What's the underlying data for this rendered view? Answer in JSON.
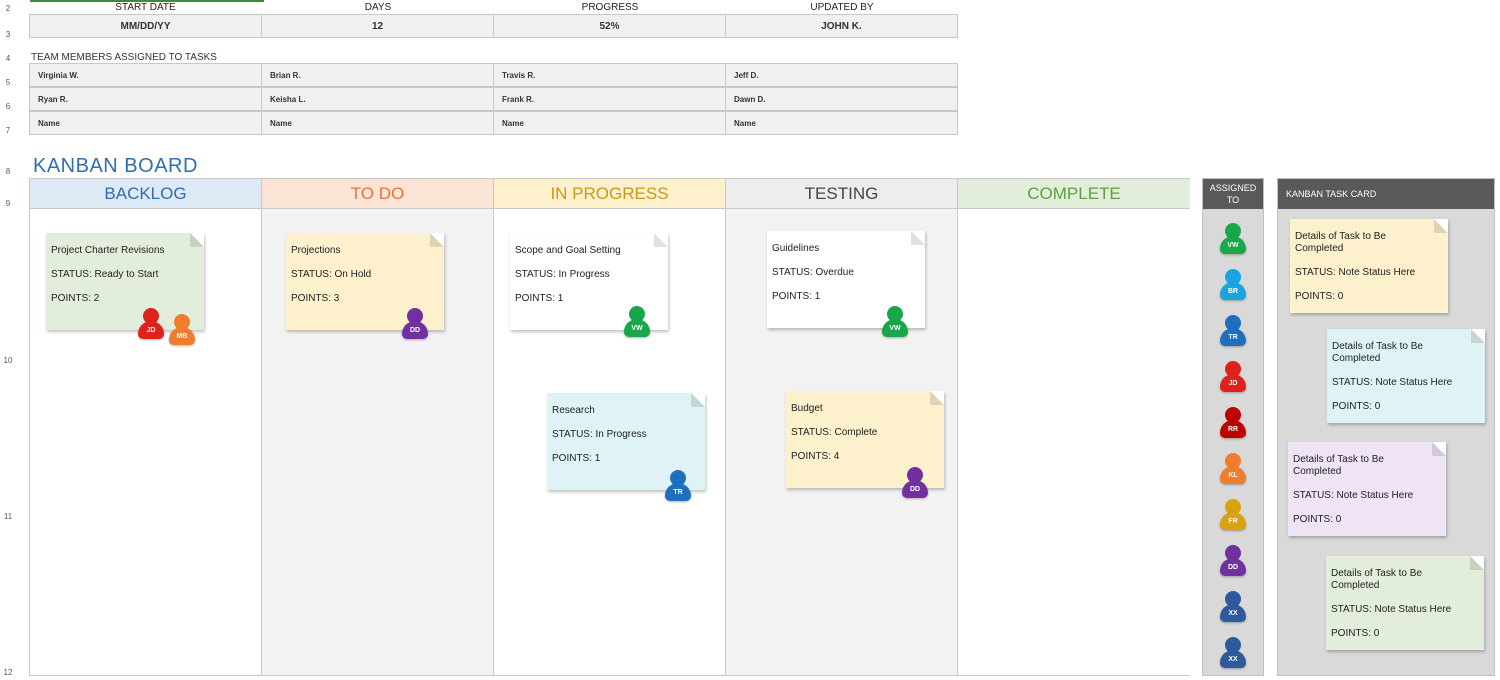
{
  "row_numbers": [
    "2",
    "3",
    "4",
    "5",
    "6",
    "7",
    "8",
    "9",
    "10",
    "11",
    "12"
  ],
  "summary": {
    "headers": [
      "START DATE",
      "DAYS",
      "PROGRESS",
      "UPDATED BY"
    ],
    "values": [
      "MM/DD/YY",
      "12",
      "52%",
      "JOHN K."
    ]
  },
  "team": {
    "label": "TEAM MEMBERS ASSIGNED TO TASKS",
    "rows": [
      [
        "Virginia W.",
        "Brian R.",
        "Travis R.",
        "Jeff D."
      ],
      [
        "Ryan R.",
        "Keisha L.",
        "Frank R.",
        "Dawn D."
      ],
      [
        "Name",
        "Name",
        "Name",
        "Name"
      ]
    ]
  },
  "board": {
    "title": "KANBAN BOARD",
    "columns": [
      {
        "label": "BACKLOG",
        "color": "#2f6eb0",
        "bg": "#dde9f5"
      },
      {
        "label": "TO DO",
        "color": "#e5743a",
        "bg": "#fbe3d6"
      },
      {
        "label": "IN PROGRESS",
        "color": "#c99a16",
        "bg": "#fdf0cc"
      },
      {
        "label": "TESTING",
        "color": "#444444",
        "bg": "#ededed"
      },
      {
        "label": "COMPLETE",
        "color": "#5aa33a",
        "bg": "#e3eddb"
      }
    ]
  },
  "cards": [
    {
      "title": "Project Charter Revisions",
      "status": "STATUS: Ready to Start",
      "points": "POINTS: 2",
      "color": "#e3eddb",
      "assignees": [
        {
          "initials": "JD",
          "color": "#e0201b"
        },
        {
          "initials": "MB",
          "color": "#ef7d2e"
        }
      ]
    },
    {
      "title": "Projections",
      "status": "STATUS: On Hold",
      "points": "POINTS: 3",
      "color": "#fdf0cc",
      "assignees": [
        {
          "initials": "DD",
          "color": "#7030a0"
        }
      ]
    },
    {
      "title": "Scope and Goal Setting",
      "status": "STATUS: In Progress",
      "points": "POINTS: 1",
      "color": "#ffffff",
      "assignees": [
        {
          "initials": "VW",
          "color": "#1aa64a"
        }
      ]
    },
    {
      "title": "Research",
      "status": "STATUS: In Progress",
      "points": "POINTS: 1",
      "color": "#dff3f6",
      "assignees": [
        {
          "initials": "TR",
          "color": "#1f6fbf"
        }
      ]
    },
    {
      "title": "Guidelines",
      "status": "STATUS: Overdue",
      "points": "POINTS: 1",
      "color": "#ffffff",
      "assignees": [
        {
          "initials": "VW",
          "color": "#1aa64a"
        }
      ]
    },
    {
      "title": "Budget",
      "status": "STATUS: Complete",
      "points": "POINTS: 4",
      "color": "#fdf0cc",
      "assignees": [
        {
          "initials": "DD",
          "color": "#7030a0"
        }
      ]
    }
  ],
  "assigned": {
    "header": "ASSIGNED TO",
    "people": [
      {
        "initials": "VW",
        "color": "#1aa64a"
      },
      {
        "initials": "BR",
        "color": "#19a3e0"
      },
      {
        "initials": "TR",
        "color": "#1f6fbf"
      },
      {
        "initials": "JD",
        "color": "#e0201b"
      },
      {
        "initials": "RR",
        "color": "#c00000"
      },
      {
        "initials": "KL",
        "color": "#ef7d2e"
      },
      {
        "initials": "FR",
        "color": "#d9a20f"
      },
      {
        "initials": "DD",
        "color": "#7030a0"
      },
      {
        "initials": "XX",
        "color": "#2e5a9c"
      },
      {
        "initials": "XX",
        "color": "#2e5a9c"
      }
    ]
  },
  "task_cards": {
    "header": "KANBAN TASK CARD",
    "cards": [
      {
        "title": "Details of Task to Be Completed",
        "status": "STATUS: Note Status Here",
        "points": "POINTS: 0",
        "color": "#fdf0cc"
      },
      {
        "title": "Details of Task to Be Completed",
        "status": "STATUS: Note Status Here",
        "points": "POINTS: 0",
        "color": "#dff3f6"
      },
      {
        "title": "Details of Task to Be Completed",
        "status": "STATUS: Note Status Here",
        "points": "POINTS: 0",
        "color": "#efe3f6"
      },
      {
        "title": "Details of Task to Be Completed",
        "status": "STATUS: Note Status Here",
        "points": "POINTS: 0",
        "color": "#e3eddb"
      }
    ]
  }
}
